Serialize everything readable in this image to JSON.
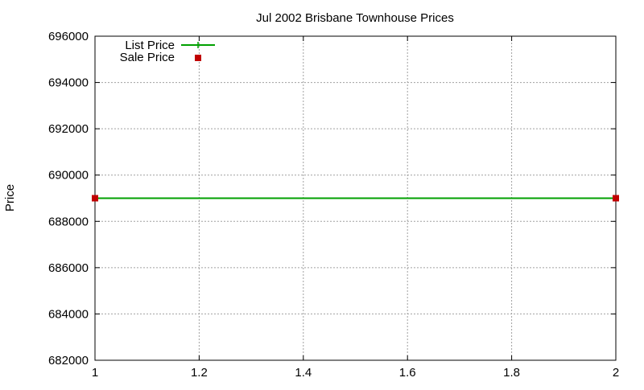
{
  "chart_data": {
    "type": "line",
    "title": "Jul 2002 Brisbane Townhouse Prices",
    "xlabel": "",
    "ylabel": "Price",
    "xlim": [
      1,
      2
    ],
    "ylim": [
      682000,
      696000
    ],
    "x_ticks": [
      "1",
      "1.2",
      "1.4",
      "1.6",
      "1.8",
      "2"
    ],
    "y_ticks": [
      "682000",
      "684000",
      "686000",
      "688000",
      "690000",
      "692000",
      "694000",
      "696000"
    ],
    "grid": true,
    "legend_position": "top-left",
    "x": [
      1,
      2
    ],
    "series": [
      {
        "name": "List Price",
        "values": [
          689000,
          689000
        ],
        "color": "#00a000",
        "style": "line"
      },
      {
        "name": "Sale Price",
        "values": [
          689000,
          689000
        ],
        "color": "#c00000",
        "style": "points"
      }
    ]
  }
}
